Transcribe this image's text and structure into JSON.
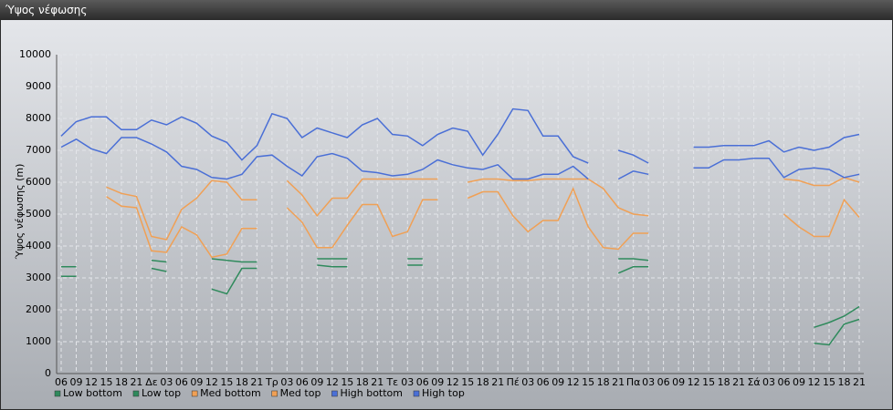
{
  "chart_data": {
    "type": "line",
    "title": "Ύψος νέφωσης",
    "y_label": "Ύψος νέφωσης (m)",
    "categories": [
      "06",
      "09",
      "12",
      "15",
      "18",
      "21",
      "Δε",
      "03",
      "06",
      "09",
      "12",
      "15",
      "18",
      "21",
      "Τρ",
      "03",
      "06",
      "09",
      "12",
      "15",
      "18",
      "21",
      "Τε",
      "03",
      "06",
      "09",
      "12",
      "15",
      "18",
      "21",
      "Πέ",
      "03",
      "06",
      "09",
      "12",
      "15",
      "18",
      "21",
      "Πα",
      "03",
      "06",
      "09",
      "12",
      "15",
      "18",
      "21",
      "Σά",
      "03",
      "06",
      "09",
      "12",
      "15",
      "18",
      "21"
    ],
    "ylim": [
      0,
      10000
    ],
    "yticks": [
      0,
      1000,
      2000,
      3000,
      4000,
      5000,
      6000,
      7000,
      8000,
      9000,
      10000
    ],
    "grid": true,
    "legend": "bottom-left",
    "series": [
      {
        "name": "Low bottom",
        "color": "#2f8a5c",
        "values": [
          3050,
          3050,
          null,
          null,
          null,
          null,
          3300,
          3200,
          null,
          null,
          2650,
          2500,
          3300,
          3300,
          null,
          null,
          null,
          3400,
          3350,
          3350,
          null,
          null,
          null,
          3400,
          3400,
          null,
          null,
          null,
          null,
          null,
          null,
          null,
          null,
          null,
          null,
          null,
          null,
          3150,
          3350,
          3350,
          null,
          null,
          null,
          null,
          null,
          null,
          null,
          null,
          null,
          null,
          950,
          900,
          1550,
          1700
        ]
      },
      {
        "name": "Low top",
        "color": "#2f8a5c",
        "values": [
          3350,
          3350,
          null,
          null,
          null,
          null,
          3550,
          3500,
          null,
          null,
          3600,
          3550,
          3500,
          3500,
          null,
          null,
          null,
          3600,
          3600,
          3600,
          null,
          null,
          null,
          3600,
          3600,
          null,
          null,
          null,
          null,
          null,
          null,
          null,
          null,
          null,
          null,
          null,
          null,
          3600,
          3600,
          3550,
          null,
          null,
          null,
          null,
          null,
          null,
          null,
          null,
          null,
          null,
          1450,
          1600,
          1800,
          2100
        ]
      },
      {
        "name": "Med bottom",
        "color": "#f0a055",
        "values": [
          null,
          null,
          null,
          5550,
          5250,
          5200,
          3850,
          3800,
          4600,
          4350,
          3650,
          3750,
          4550,
          4550,
          null,
          5200,
          4750,
          3950,
          3950,
          4650,
          5300,
          5300,
          4300,
          4450,
          5450,
          5450,
          null,
          5500,
          5700,
          5700,
          4950,
          4450,
          4800,
          4800,
          5800,
          4600,
          3950,
          3900,
          4400,
          4400,
          null,
          null,
          null,
          null,
          null,
          null,
          null,
          null,
          5000,
          4600,
          4300,
          4300,
          5450,
          4900
        ]
      },
      {
        "name": "Med top",
        "color": "#f0a055",
        "values": [
          null,
          null,
          null,
          5850,
          5650,
          5550,
          4300,
          4200,
          5150,
          5500,
          6050,
          6000,
          5450,
          5450,
          null,
          6050,
          5600,
          4950,
          5500,
          5500,
          6100,
          6100,
          6100,
          6100,
          6100,
          6100,
          null,
          6000,
          6100,
          6100,
          6050,
          6050,
          6100,
          6100,
          6100,
          6100,
          5800,
          5200,
          5000,
          4950,
          null,
          null,
          null,
          null,
          null,
          null,
          null,
          null,
          6100,
          6050,
          5900,
          5900,
          6150,
          6000
        ]
      },
      {
        "name": "High bottom",
        "color": "#4a6fd6",
        "values": [
          7100,
          7350,
          7050,
          6900,
          7400,
          7400,
          7200,
          6950,
          6500,
          6400,
          6150,
          6100,
          6250,
          6800,
          6850,
          6500,
          6200,
          6800,
          6900,
          6750,
          6350,
          6300,
          6200,
          6250,
          6400,
          6700,
          6550,
          6450,
          6400,
          6550,
          6100,
          6100,
          6250,
          6250,
          6500,
          6100,
          null,
          6100,
          6350,
          6250,
          null,
          null,
          6450,
          6450,
          6700,
          6700,
          6750,
          6750,
          6150,
          6400,
          6450,
          6400,
          6150,
          6250
        ]
      },
      {
        "name": "High top",
        "color": "#4a6fd6",
        "values": [
          7450,
          7900,
          8050,
          8050,
          7650,
          7650,
          7950,
          7800,
          8050,
          7850,
          7450,
          7250,
          6700,
          7150,
          8150,
          8000,
          7400,
          7700,
          7550,
          7400,
          7800,
          8000,
          7500,
          7450,
          7150,
          7500,
          7700,
          7600,
          6850,
          7500,
          8300,
          8250,
          7450,
          7450,
          6800,
          6600,
          null,
          7000,
          6850,
          6600,
          null,
          null,
          7100,
          7100,
          7150,
          7150,
          7150,
          7300,
          6950,
          7100,
          7000,
          7100,
          7400,
          7500
        ]
      }
    ]
  }
}
